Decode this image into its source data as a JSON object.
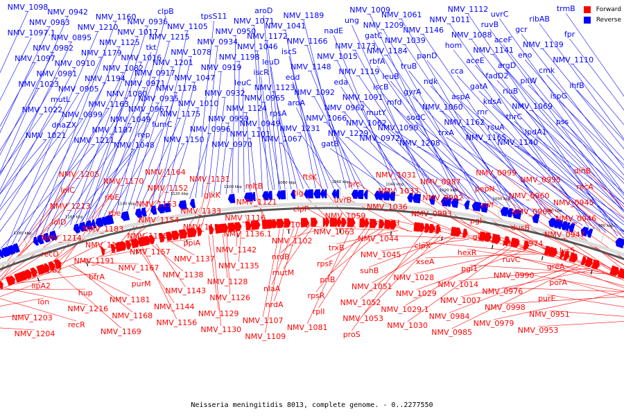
{
  "caption": "Neisseria meningitidis 8013, complete genome. - 0..2277550",
  "legend": {
    "forward_label": "Forward",
    "reverse_label": "Reverse",
    "forward_color": "#ff0000",
    "reverse_color": "#0000ff"
  },
  "genome": {
    "start": 0,
    "end": 2277550
  },
  "ticks": [
    "1240 kbp",
    "1220 kbp",
    "1200 kbp",
    "1180 kbp",
    "1160 kbp",
    "1140 kbp",
    "1120 kbp",
    "1100 kbp",
    "1080 kbp",
    "1060 kbp",
    "1040 kbp",
    "1020 kbp",
    "1000 kbp",
    "980 kbp",
    "960 kbp",
    "940 kbp",
    "920 kbp",
    "900 kbp"
  ],
  "reverse_labels": [
    "NMV_1098",
    "NMV_1097.1",
    "NMV_1097",
    "NMV_1023",
    "NMV_1022",
    "NMV_1021",
    "NMV_0983",
    "NMV_0982",
    "NMV_0981",
    "mutL",
    "dnaZX",
    "NMV_0942",
    "NMV_0895",
    "NMV_0910",
    "NMV_0905",
    "NMV_0899",
    "NMV_1211",
    "NMV_1210",
    "NMV_1179",
    "NMV_1194",
    "NMV_1163",
    "NMV_1187",
    "NMV_1160",
    "NMV_1125",
    "NMV_1082",
    "NMV_1080",
    "NMV_1049",
    "NMV_1048",
    "NMV_1017",
    "NMV_1016",
    "NMV_0971",
    "NMV_0967",
    "rep",
    "NMV_0936",
    "tkt",
    "NMV_0917",
    "NMV_0935",
    "fumC",
    "clpB",
    "NMV_1215",
    "NMV_1201",
    "NMV_1178",
    "NMV_1175",
    "NMV_1150",
    "NMV_1105",
    "NMV_1078",
    "NMV_1047",
    "NMV_1010",
    "NMV_0996",
    "tpsS11",
    "NMV_0934",
    "NMV_0919",
    "NMV_0932",
    "NMV_0959",
    "NMV_0970",
    "NMV_0950",
    "NMV_1198",
    "leuC",
    "NMV_1124",
    "NMV_1101",
    "NMV_1071",
    "NMV_1046",
    "iscR",
    "NMV_0965",
    "NMV_0949",
    "aroD",
    "NMV_1172",
    "leuD",
    "NMV_1123",
    "rpsA",
    "NMV_1067",
    "NMV_1041",
    "iscS",
    "edd",
    "aroA",
    "NMV_1231",
    "NMV_1189",
    "NMV_1166",
    "NMV_1148",
    "NMV_1092",
    "NMV_1066",
    "gatB",
    "nadE",
    "NMV_1015",
    "eda",
    "NMV_0962",
    "NMV_1229",
    "ung",
    "NMV_1173",
    "NMV_1119",
    "NMV_1091",
    "NMV_1062",
    "NMV_1009",
    "gatC",
    "rbfA",
    "iscB",
    "mutY",
    "NMV_0972",
    "NMV_1209",
    "NMV_1184",
    "leuB",
    "mfd",
    "NMV_1090",
    "NMV_1061",
    "NMV_1039",
    "truB",
    "gyrA",
    "sodC",
    "NMV_1208",
    "NMV_1146",
    "panD",
    "ndk",
    "NMV_1060",
    "trxA",
    "NMV_1011",
    "hom",
    "cca",
    "aspA",
    "NMV_1162",
    "NMV_1112",
    "NMV_1088",
    "aceE",
    "gatA",
    "rnr",
    "NMV_1165",
    "ruvB",
    "NMV_1141",
    "fadD2",
    "kdsA",
    "rsuA",
    "uvrC",
    "aceF",
    "argD",
    "rluB",
    "thrC",
    "NMV_1140",
    "gcr",
    "eno",
    "pilW",
    "NMV_1069",
    "lpdA1",
    "ribAB",
    "NMV_1139",
    "cmk",
    "ispG",
    "pss",
    "trmB",
    "fpr",
    "NMV_1110",
    "ihfB"
  ],
  "forward_labels": [
    "dinB",
    "recA",
    "NMV_0945",
    "NMV_0946",
    "NMV_0947",
    "lysS",
    "greA",
    "porA",
    "purE",
    "NMV_0951",
    "NMV_0953",
    "NMV_0955",
    "NMV_0960",
    "NMV_0969",
    "dusB",
    "NMV_0974",
    "ruvC",
    "NMV_0990",
    "NMV_0976",
    "NMV_0998",
    "NMV_0979",
    "NMV_0999",
    "pepN",
    "zwf",
    "pgl",
    "glk",
    "hexR",
    "pgi1",
    "NMV_1014",
    "NMV_1007",
    "NMV_0984",
    "NMV_0985",
    "NMV_0987",
    "NMV_0992",
    "NMV_0993",
    "lldA",
    "clpX",
    "xseA",
    "NMV_1028",
    "NMV_1029",
    "NMV_1029.1",
    "NMV_1030",
    "NMV_1031",
    "NMV_1033",
    "NMV_1036",
    "pdxH",
    "NMV_1044",
    "NMV_1045",
    "suhB",
    "NMV_1051",
    "NMV_1052",
    "NMV_1053",
    "proS",
    "prc",
    "uvrB",
    "NMV_1059",
    "NMV_1063",
    "trxB",
    "rpsF",
    "priB",
    "rpsR",
    "rplI",
    "NMV_1081",
    "ftsK",
    "tig",
    "clpP",
    "NMV_1093",
    "NMV_1102",
    "nrdB",
    "mutM",
    "nlaA",
    "nrdA",
    "NMV_1107",
    "NMV_1109",
    "mltB",
    "NMV_1121",
    "NMV_1116",
    "NMV_1136.1",
    "NMV_1142",
    "NMV_1135",
    "NMV_1128",
    "NMV_1126",
    "NMV_1129",
    "NMV_1130",
    "NMV_1131",
    "glxK",
    "NMV_1133",
    "NMV_1134",
    "ppiA",
    "NMV_1137",
    "NMV_1138",
    "NMV_1143",
    "NMV_1144",
    "NMV_1156",
    "NMV_1164",
    "NMV_1152",
    "NMV_1153",
    "NMV_1154",
    "NMV_1155",
    "NMV_1157",
    "NMV_1167",
    "purM",
    "NMV_1181",
    "NMV_1168",
    "NMV_1169",
    "NMV_1170",
    "ribE",
    "rpe",
    "NMV_1183",
    "NMV_1190",
    "NMV_1191",
    "bfrA",
    "hup",
    "NMV_1216",
    "recR",
    "NMV_1205",
    "lolC",
    "NMV_1213",
    "lolD",
    "NMV_1214",
    "recD",
    "lipB2",
    "lipA2",
    "lon",
    "NMV_1203",
    "NMV_1204"
  ]
}
